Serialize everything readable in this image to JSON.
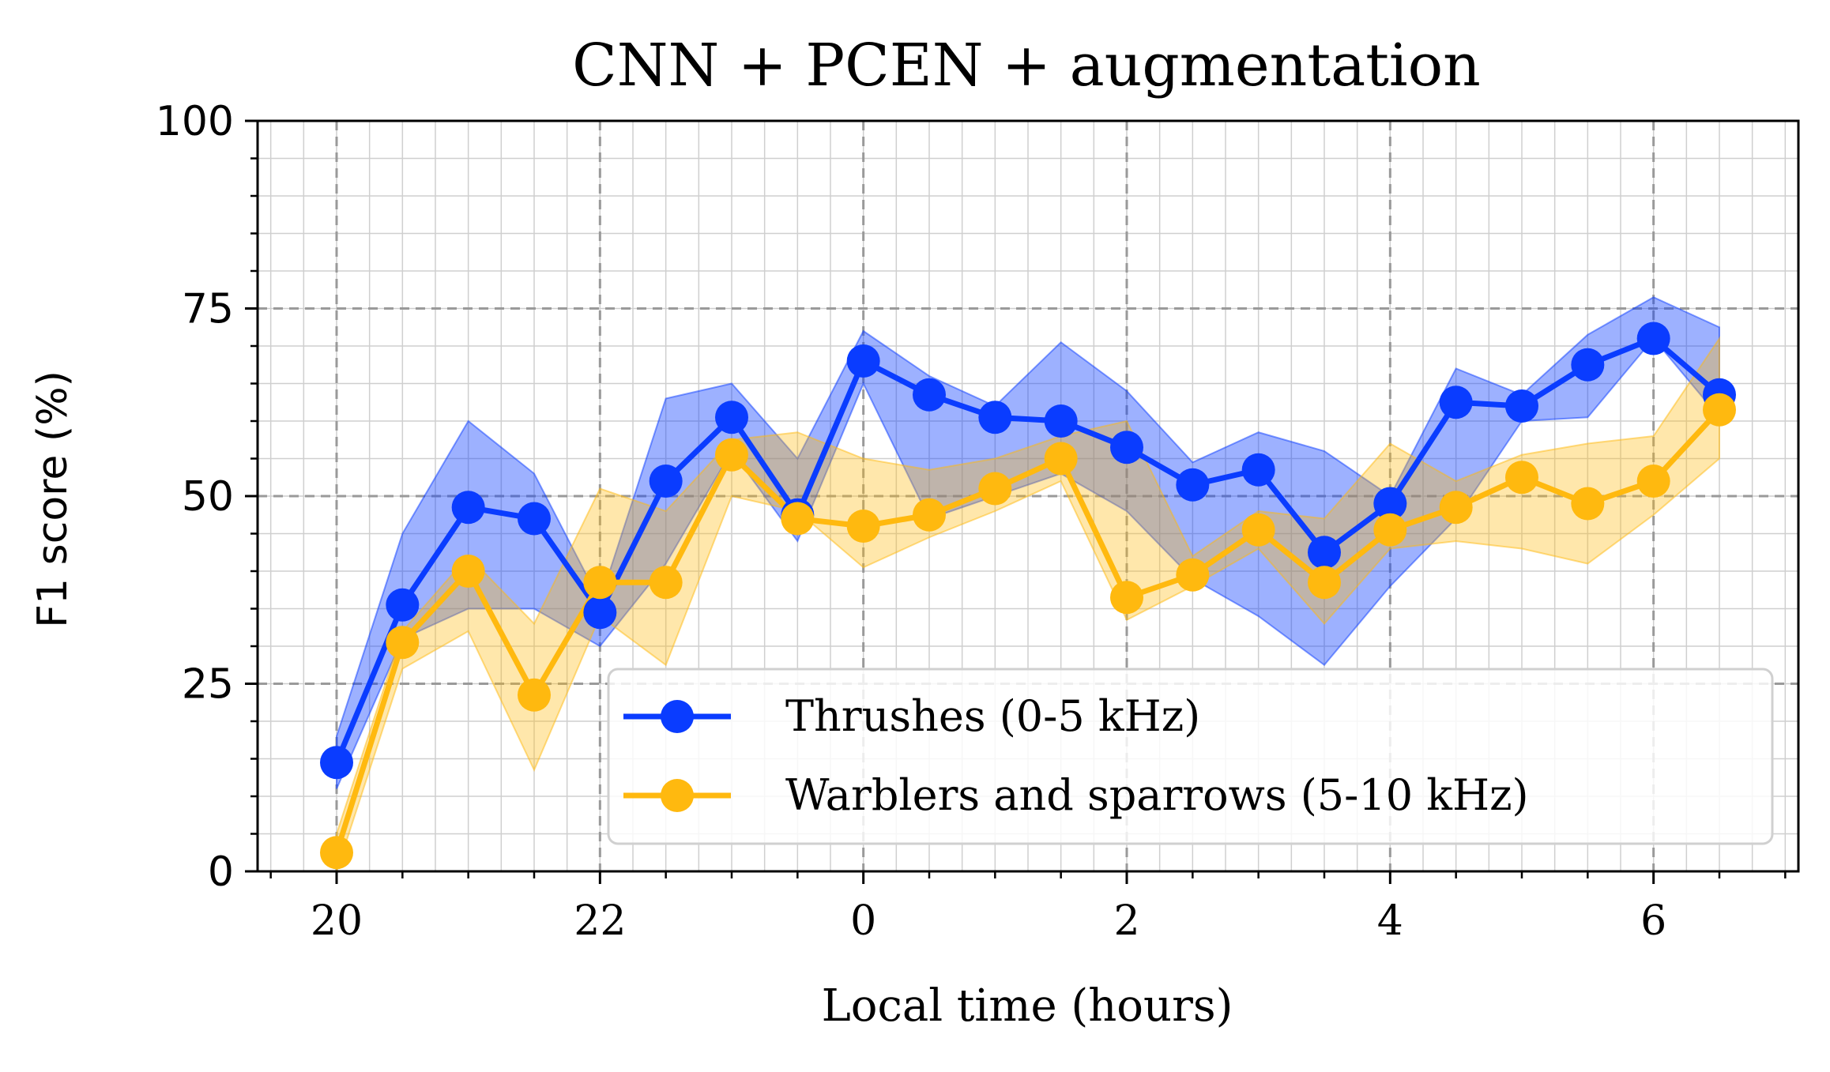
{
  "chart_data": {
    "type": "line",
    "title": "CNN + PCEN + augmentation",
    "xlabel": "Local time (hours)",
    "ylabel": "F1 score (%)",
    "x_hours_since_20": [
      0,
      0.5,
      1,
      1.5,
      2,
      2.5,
      3,
      3.5,
      4,
      4.5,
      5,
      5.5,
      6,
      6.5,
      7,
      7.5,
      8,
      8.5,
      9,
      9.5,
      10,
      10.5
    ],
    "xlim_hours_since_20": [
      -0.6,
      11.1
    ],
    "xticks": [
      {
        "at": 0,
        "label": "20"
      },
      {
        "at": 2,
        "label": "22"
      },
      {
        "at": 4,
        "label": "0"
      },
      {
        "at": 6,
        "label": "2"
      },
      {
        "at": 8,
        "label": "4"
      },
      {
        "at": 10,
        "label": "6"
      }
    ],
    "ylim": [
      0,
      100
    ],
    "yticks": [
      {
        "at": 0,
        "label": "0"
      },
      {
        "at": 25,
        "label": "25"
      },
      {
        "at": 50,
        "label": "50"
      },
      {
        "at": 75,
        "label": "75"
      },
      {
        "at": 100,
        "label": "100"
      }
    ],
    "grid": true,
    "legend_position": "lower-right",
    "series": [
      {
        "name": "Thrushes (0-5 kHz)",
        "color": "#0a3cff",
        "values": [
          14.5,
          35.5,
          48.5,
          47,
          34.5,
          52,
          60.5,
          47.5,
          68,
          63.5,
          60.5,
          60,
          56.5,
          51.5,
          53.5,
          42.5,
          49,
          62.5,
          62,
          67.5,
          71,
          63.5
        ],
        "band_upper": [
          18,
          45,
          60,
          53,
          36,
          63,
          65,
          55,
          72,
          66,
          62,
          70.5,
          64,
          54.5,
          58.5,
          56,
          50,
          67,
          63.5,
          71.5,
          76.5,
          72.5
        ],
        "band_lower": [
          11,
          31,
          35,
          35,
          30,
          41,
          56,
          44,
          65,
          47,
          50,
          53,
          48,
          39,
          34,
          27.5,
          38,
          47,
          60,
          60.5,
          71,
          60.5
        ]
      },
      {
        "name": "Warblers and sparrows (5-10 kHz)",
        "color": "#ffb90f",
        "values": [
          2.5,
          30.5,
          40,
          23.5,
          38.5,
          38.5,
          55.5,
          47,
          46,
          47.5,
          51,
          55,
          36.5,
          39.5,
          45.5,
          38.5,
          45.5,
          48.5,
          52.5,
          49,
          52,
          61.5
        ],
        "band_upper": [
          5,
          32,
          42,
          33,
          51,
          48,
          57.5,
          58.5,
          55,
          53.5,
          55,
          58,
          60,
          42,
          48,
          47,
          57,
          52,
          55.5,
          57,
          58,
          71
        ],
        "band_lower": [
          0,
          27,
          32,
          13.5,
          34,
          27.5,
          50,
          48,
          40.5,
          44.5,
          48,
          52,
          33.5,
          38,
          43,
          33,
          43,
          44,
          43,
          41,
          47.5,
          55
        ]
      }
    ]
  }
}
